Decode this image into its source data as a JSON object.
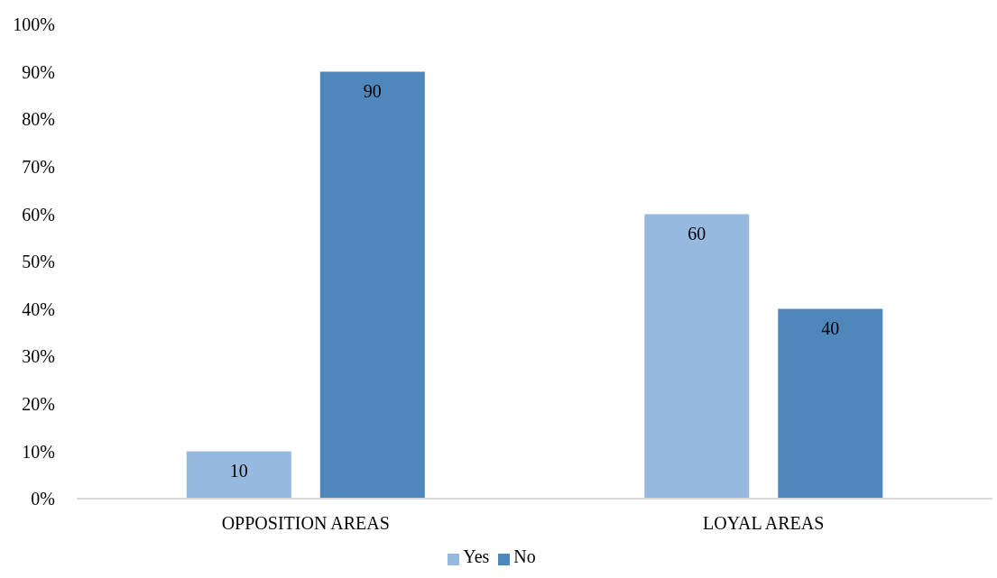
{
  "chart_data": {
    "type": "bar",
    "categories": [
      "OPPOSITION AREAS",
      "LOYAL AREAS"
    ],
    "series": [
      {
        "name": "Yes",
        "color": "#97b9e0",
        "values": [
          10,
          60
        ]
      },
      {
        "name": "No",
        "color": "#4f86bc",
        "values": [
          90,
          40
        ]
      }
    ],
    "ylim": [
      0,
      100
    ],
    "yticks": [
      {
        "value": 0,
        "label": "0%"
      },
      {
        "value": 10,
        "label": "10%"
      },
      {
        "value": 20,
        "label": "20%"
      },
      {
        "value": 30,
        "label": "30%"
      },
      {
        "value": 40,
        "label": "40%"
      },
      {
        "value": 50,
        "label": "50%"
      },
      {
        "value": 60,
        "label": "60%"
      },
      {
        "value": 70,
        "label": "70%"
      },
      {
        "value": 80,
        "label": "80%"
      },
      {
        "value": 90,
        "label": "90%"
      },
      {
        "value": 100,
        "label": "100%"
      }
    ],
    "data_labels": true,
    "legend": "bottom"
  }
}
